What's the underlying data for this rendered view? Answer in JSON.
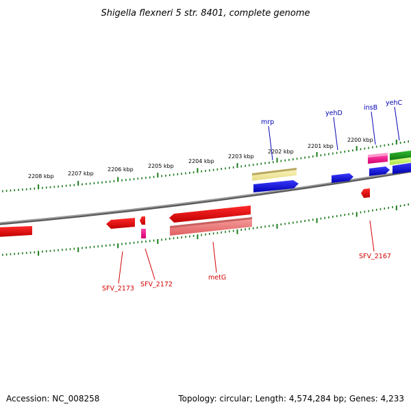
{
  "title": "Shigella flexneri 5 str. 8401, complete genome",
  "footer": {
    "accession": "Accession: NC_008258",
    "summary": "Topology: circular; Length: 4,574,284 bp; Genes: 4,233"
  },
  "scale_labels": [
    "2208 kbp",
    "2207 kbp",
    "2206 kbp",
    "2205 kbp",
    "2204 kbp",
    "2203 kbp",
    "2202 kbp",
    "2201 kbp",
    "2200 kbp"
  ],
  "top_gene_labels": [
    "mrp",
    "yehD",
    "insB",
    "yehC"
  ],
  "bottom_gene_labels": [
    "SFV_2173",
    "SFV_2172",
    "metG",
    "SFV_2167"
  ],
  "colors": {
    "backbone": "#808080",
    "tick": "#1a7a1a",
    "forward_cds": "#0000ee",
    "reverse_cds": "#ee0000",
    "rna_light": "#f5f0a0",
    "rna_dark": "#f08080",
    "pink": "#ff1493",
    "green": "#22aa22",
    "lime": "#ccff66"
  }
}
